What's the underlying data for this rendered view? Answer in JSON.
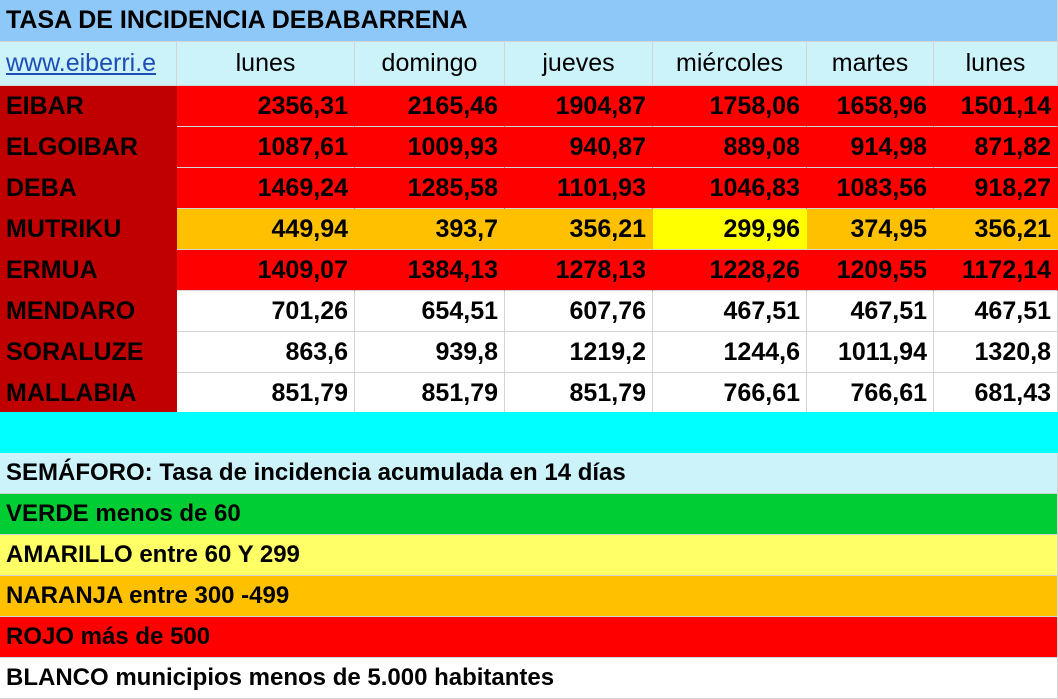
{
  "title": "TASA DE INCIDENCIA DEBABARRENA",
  "link_text": "www.eiberri.e",
  "day_headers": [
    "lunes",
    "domingo",
    "jueves",
    "miércoles",
    "martes",
    "lunes"
  ],
  "rows": [
    {
      "name": "EIBAR",
      "values": [
        "2356,31",
        "2165,46",
        "1904,87",
        "1758,06",
        "1658,96",
        "1501,14"
      ]
    },
    {
      "name": "ELGOIBAR",
      "values": [
        "1087,61",
        "1009,93",
        "940,87",
        "889,08",
        "914,98",
        "871,82"
      ]
    },
    {
      "name": "DEBA",
      "values": [
        "1469,24",
        "1285,58",
        "1101,93",
        "1046,83",
        "1083,56",
        "918,27"
      ]
    },
    {
      "name": "MUTRIKU",
      "values": [
        "449,94",
        "393,7",
        "356,21",
        "299,96",
        "374,95",
        "356,21"
      ]
    },
    {
      "name": "ERMUA",
      "values": [
        "1409,07",
        "1384,13",
        "1278,13",
        "1228,26",
        "1209,55",
        "1172,14"
      ]
    },
    {
      "name": "MENDARO",
      "values": [
        "701,26",
        "654,51",
        "607,76",
        "467,51",
        "467,51",
        "467,51"
      ]
    },
    {
      "name": "SORALUZE",
      "values": [
        "863,6",
        "939,8",
        "1219,2",
        "1244,6",
        "1011,94",
        "1320,8"
      ]
    },
    {
      "name": "MALLABIA",
      "values": [
        "851,79",
        "851,79",
        "851,79",
        "766,61",
        "766,61",
        "681,43"
      ]
    }
  ],
  "legend": {
    "heading": "SEMÁFORO:  Tasa de incidencia acumulada en 14 días",
    "green": "VERDE menos de 60",
    "yellow": "AMARILLO entre 60 Y 299",
    "orange": "NARANJA entre 300 -499",
    "red": "ROJO más de 500",
    "white": "BLANCO municipios menos de 5.000 habitantes"
  },
  "colors": {
    "title_bg": "#8ec8f8",
    "header_bg": "#ccf2fa",
    "name_col_bg": "#c00000",
    "red": "#ff0000",
    "orange": "#ffc000",
    "yellow": "#ffff00",
    "light_yellow": "#ffff66",
    "green": "#00cc33",
    "cyan": "#00ffff",
    "white": "#ffffff"
  },
  "row_fills": [
    "red",
    "red",
    "red",
    "orange",
    "red",
    "white",
    "white",
    "white"
  ],
  "cell_fill_overrides": [
    {
      "row": 3,
      "col": 3,
      "fill": "yellow"
    }
  ]
}
